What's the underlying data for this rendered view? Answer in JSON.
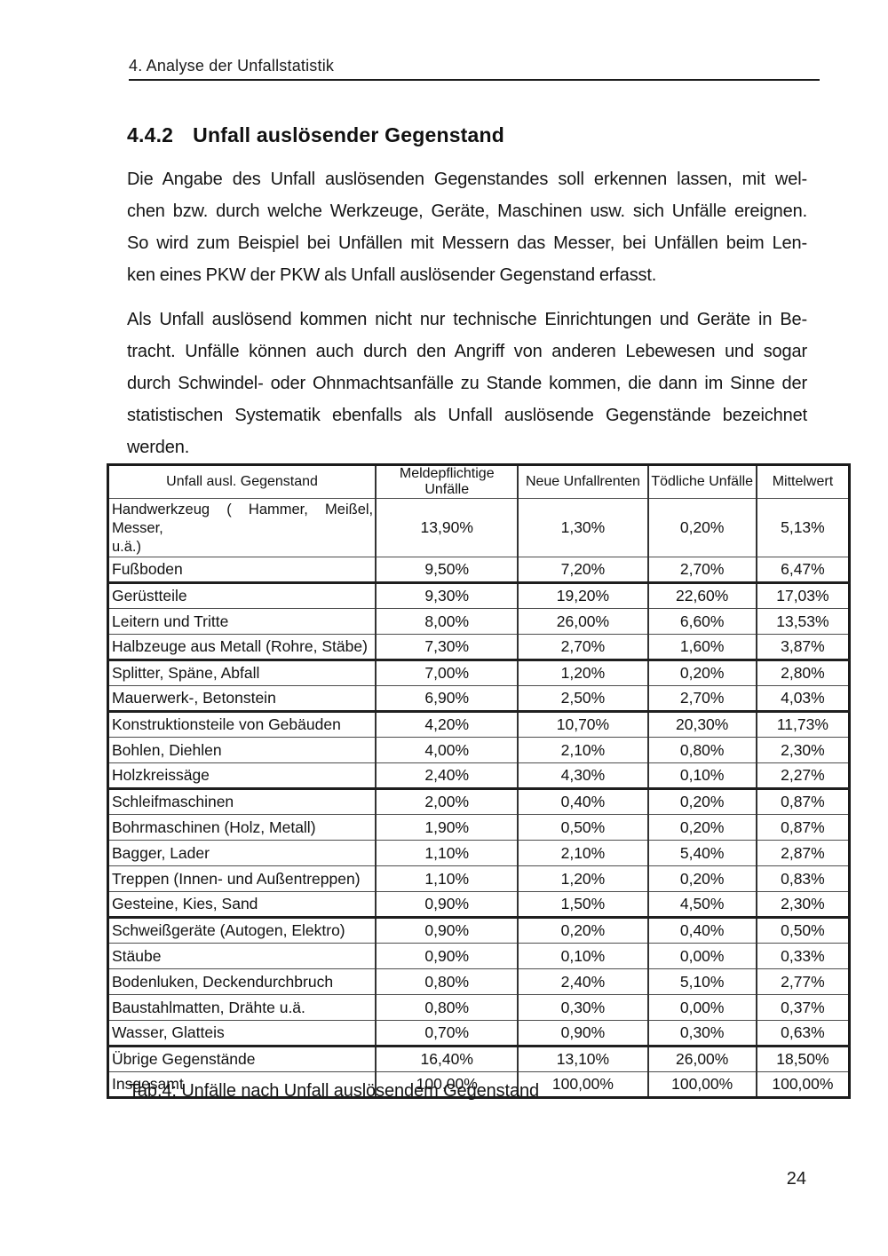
{
  "page": {
    "running_header": "4. Analyse der Unfallstatistik",
    "page_number": "24"
  },
  "section": {
    "number": "4.4.2",
    "title": "Unfall auslösender Gegenstand"
  },
  "paragraphs": [
    {
      "lines": [
        "Die Angabe des Unfall auslösenden Gegenstandes soll erkennen lassen, mit wel-",
        "chen bzw. durch welche Werkzeuge, Geräte, Maschinen usw. sich Unfälle ereignen.",
        "So wird zum Beispiel bei Unfällen mit Messern das Messer, bei Unfällen beim Len-",
        "ken eines PKW der PKW als Unfall auslösender Gegenstand erfasst."
      ]
    },
    {
      "lines": [
        "Als Unfall auslösend kommen nicht nur technische Einrichtungen und Geräte in Be-",
        "tracht. Unfälle können auch durch den Angriff von anderen Lebewesen und sogar",
        "durch Schwindel- oder Ohnmachtsanfälle zu Stande kommen, die dann im Sinne der",
        "statistischen Systematik ebenfalls als Unfall auslösende Gegenstände bezeichnet",
        "werden."
      ]
    }
  ],
  "table": {
    "caption": "Tab.4: Unfälle nach Unfall auslösendem Gegenstand",
    "headers": [
      "Unfall ausl. Gegenstand",
      "Meldepflichtige Unfälle",
      "Neue Unfallrenten",
      "Tödliche Unfälle",
      "Mittelwert"
    ],
    "rows": [
      {
        "label": "Handwerkzeug ( Hammer, Meißel, Messer, u.ä.)",
        "label_lines": [
          "Handwerkzeug ( Hammer, Meißel, Messer,",
          "u.ä.)"
        ],
        "two_line": true,
        "values": [
          "13,90%",
          "1,30%",
          "0,20%",
          "5,13%"
        ]
      },
      {
        "label": "Fußboden",
        "values": [
          "9,50%",
          "7,20%",
          "2,70%",
          "6,47%"
        ]
      },
      {
        "label": "Gerüstteile",
        "thick_top": true,
        "values": [
          "9,30%",
          "19,20%",
          "22,60%",
          "17,03%"
        ]
      },
      {
        "label": "Leitern und Tritte",
        "values": [
          "8,00%",
          "26,00%",
          "6,60%",
          "13,53%"
        ]
      },
      {
        "label": "Halbzeuge aus Metall (Rohre, Stäbe)",
        "values": [
          "7,30%",
          "2,70%",
          "1,60%",
          "3,87%"
        ]
      },
      {
        "label": "Splitter, Späne, Abfall",
        "thick_top": true,
        "values": [
          "7,00%",
          "1,20%",
          "0,20%",
          "2,80%"
        ]
      },
      {
        "label": "Mauerwerk-, Betonstein",
        "values": [
          "6,90%",
          "2,50%",
          "2,70%",
          "4,03%"
        ]
      },
      {
        "label": "Konstruktionsteile von Gebäuden",
        "thick_top": true,
        "values": [
          "4,20%",
          "10,70%",
          "20,30%",
          "11,73%"
        ]
      },
      {
        "label": "Bohlen, Diehlen",
        "values": [
          "4,00%",
          "2,10%",
          "0,80%",
          "2,30%"
        ]
      },
      {
        "label": "Holzkreissäge",
        "values": [
          "2,40%",
          "4,30%",
          "0,10%",
          "2,27%"
        ]
      },
      {
        "label": "Schleifmaschinen",
        "thick_top": true,
        "values": [
          "2,00%",
          "0,40%",
          "0,20%",
          "0,87%"
        ]
      },
      {
        "label": "Bohrmaschinen (Holz, Metall)",
        "values": [
          "1,90%",
          "0,50%",
          "0,20%",
          "0,87%"
        ]
      },
      {
        "label": "Bagger, Lader",
        "values": [
          "1,10%",
          "2,10%",
          "5,40%",
          "2,87%"
        ]
      },
      {
        "label": "Treppen (Innen- und Außentreppen)",
        "values": [
          "1,10%",
          "1,20%",
          "0,20%",
          "0,83%"
        ]
      },
      {
        "label": "Gesteine, Kies, Sand",
        "values": [
          "0,90%",
          "1,50%",
          "4,50%",
          "2,30%"
        ]
      },
      {
        "label": "Schweißgeräte (Autogen, Elektro)",
        "thick_top": true,
        "values": [
          "0,90%",
          "0,20%",
          "0,40%",
          "0,50%"
        ]
      },
      {
        "label": "Stäube",
        "values": [
          "0,90%",
          "0,10%",
          "0,00%",
          "0,33%"
        ]
      },
      {
        "label": "Bodenluken, Deckendurchbruch",
        "values": [
          "0,80%",
          "2,40%",
          "5,10%",
          "2,77%"
        ]
      },
      {
        "label": "Baustahlmatten, Drähte u.ä.",
        "values": [
          "0,80%",
          "0,30%",
          "0,00%",
          "0,37%"
        ]
      },
      {
        "label": "Wasser, Glatteis",
        "values": [
          "0,70%",
          "0,90%",
          "0,30%",
          "0,63%"
        ]
      },
      {
        "label": "Übrige Gegenstände",
        "thick_top": true,
        "values": [
          "16,40%",
          "13,10%",
          "26,00%",
          "18,50%"
        ]
      },
      {
        "label": "Insgesamt",
        "values": [
          "100,00%",
          "100,00%",
          "100,00%",
          "100,00%"
        ]
      }
    ]
  },
  "colors": {
    "background": "#ffffff",
    "text": "#161616",
    "table_border": "#1b1b1b"
  }
}
